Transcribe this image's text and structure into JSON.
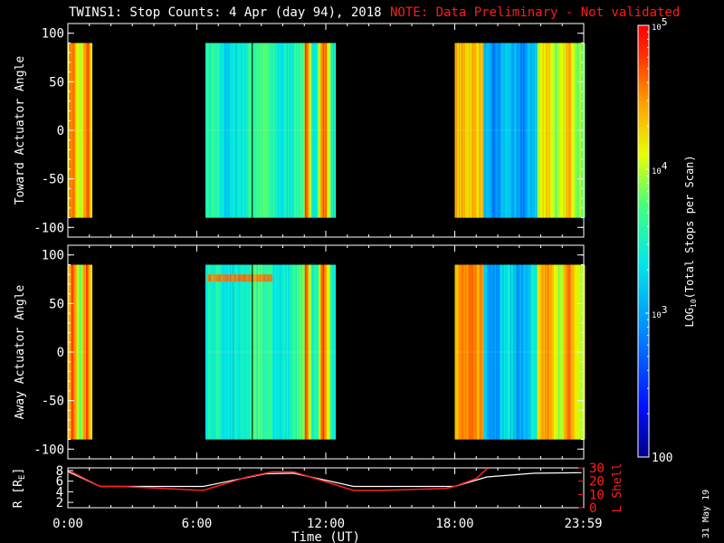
{
  "header": {
    "title": "TWINS1: Stop Counts:  4 Apr (day  94), 2018",
    "note": "NOTE: Data Preliminary - Not validated"
  },
  "stamp": "31 May 19",
  "colors": {
    "note": "#ff1a1a",
    "lshell": "#ff2020",
    "radius": "#ffffff",
    "axis": "#ffffff"
  },
  "chart_data": [
    {
      "type": "heatmap",
      "name": "toward-panel",
      "ylabel": "Toward Actuator Angle",
      "ylim": [
        -110,
        110
      ],
      "yticks": [
        100,
        50,
        0,
        -50,
        -100
      ],
      "xlim_hours": [
        0,
        24
      ],
      "data_angle_range": [
        -90,
        90
      ],
      "segments_hours": [
        [
          0.0,
          1.1
        ],
        [
          6.4,
          12.45
        ],
        [
          18.0,
          24.0
        ]
      ],
      "gap_lines_hours": [
        8.58
      ],
      "colormap": "rainbow-log"
    },
    {
      "type": "heatmap",
      "name": "away-panel",
      "ylabel": "Away Actuator Angle",
      "ylim": [
        -110,
        110
      ],
      "yticks": [
        100,
        50,
        0,
        -50,
        -100
      ],
      "xlim_hours": [
        0,
        24
      ],
      "data_angle_range": [
        -90,
        90
      ],
      "segments_hours": [
        [
          0.0,
          1.1
        ],
        [
          6.4,
          12.45
        ],
        [
          18.0,
          24.0
        ]
      ],
      "gap_lines_hours": [
        8.58
      ],
      "colormap": "rainbow-log"
    },
    {
      "type": "line",
      "name": "orbit-panel",
      "xlabel": "Time (UT)",
      "xticks": [
        "0:00",
        "6:00",
        "12:00",
        "18:00",
        "23:59"
      ],
      "ylabel_left": "R [R",
      "ylabel_left_sub": "E",
      "ylabel_left_end": "]",
      "ylabel_right": "L Shell",
      "yticks_left": [
        2,
        4,
        6,
        8
      ],
      "yticks_right": [
        0,
        10,
        20,
        30
      ],
      "ylim_left": [
        1,
        8.5
      ],
      "ylim_right": [
        0,
        30
      ],
      "series": [
        {
          "axis": "left",
          "x": [
            0,
            0.5,
            1.5,
            6.3,
            9.2,
            10.5,
            13.3,
            18.0,
            19.5,
            21.7,
            23.9
          ],
          "y": [
            7.8,
            6.9,
            5.0,
            5.0,
            7.4,
            7.5,
            5.0,
            5.0,
            6.8,
            7.5,
            7.6
          ]
        },
        {
          "axis": "right",
          "x": [
            0,
            0.3,
            1.5,
            2.5,
            6.3,
            8.3,
            9.5,
            10.5,
            13.3,
            14.5,
            17.6,
            18.0,
            19.0,
            19.55
          ],
          "y": [
            28,
            26,
            16,
            16,
            13,
            23,
            27,
            27,
            13,
            13,
            14.5,
            16,
            22,
            30
          ]
        }
      ]
    },
    {
      "type": "colorbar",
      "name": "color-scale",
      "label": "LOG10(Total Stops per Scan)",
      "label_main": "LOG",
      "label_sub": "10",
      "label_end": "(Total Stops per Scan)",
      "range_log": [
        2,
        5
      ],
      "ticks": [
        {
          "value_log": 5,
          "base": "10",
          "exp": "5"
        },
        {
          "value_log": 4,
          "base": "10",
          "exp": "4"
        },
        {
          "value_log": 3,
          "base": "10",
          "exp": "3"
        },
        {
          "value_log": 2,
          "base": "100",
          "exp": ""
        }
      ]
    }
  ]
}
